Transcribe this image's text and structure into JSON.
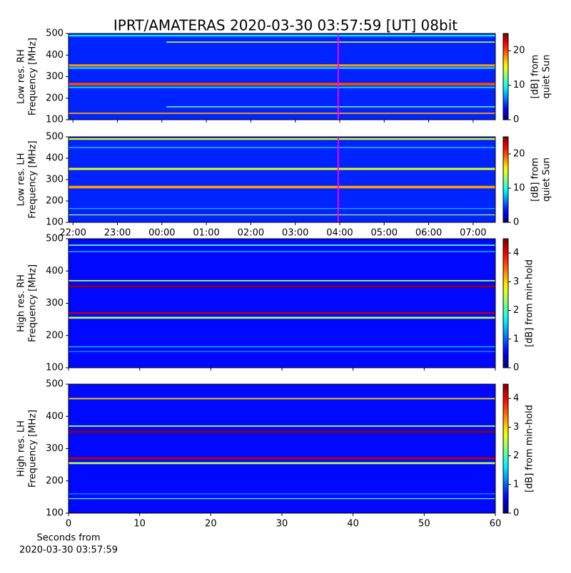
{
  "title": "IPRT/AMATERAS 2020-03-30 03:57:59 [UT]   08bit",
  "chart_data": [
    {
      "type": "heatmap",
      "ylabel": [
        "Low res. RH",
        "Frequency [MHz]"
      ],
      "xlim": [
        21.9,
        31.5
      ],
      "xticks": [
        {
          "value": 22,
          "label": "22:00"
        },
        {
          "value": 23,
          "label": "23:00"
        },
        {
          "value": 24,
          "label": "00:00"
        },
        {
          "value": 25,
          "label": "01:00"
        },
        {
          "value": 26,
          "label": "02:00"
        },
        {
          "value": 27,
          "label": "03:00"
        },
        {
          "value": 28,
          "label": "04:00"
        },
        {
          "value": 29,
          "label": "05:00"
        },
        {
          "value": 30,
          "label": "06:00"
        },
        {
          "value": 31,
          "label": "07:00"
        }
      ],
      "show_xtick_labels": false,
      "ylim": [
        100,
        500
      ],
      "yticks": [
        100,
        200,
        300,
        400,
        500
      ],
      "clim": [
        0,
        25
      ],
      "cticks": [
        0,
        10,
        20
      ],
      "clabel": [
        "[dB] from",
        "quiet Sun"
      ],
      "background": 4,
      "vline": 27.966,
      "vline_color": "#ff00ff",
      "bands": [
        {
          "freq": 490,
          "width": 8,
          "db": 9
        },
        {
          "freq": 460,
          "width": 5,
          "db": 15,
          "xrange": [
            24.1,
            31.5
          ]
        },
        {
          "freq": 352,
          "width": 10,
          "db": 18
        },
        {
          "freq": 340,
          "width": 6,
          "db": 10
        },
        {
          "freq": 265,
          "width": 12,
          "db": 20
        },
        {
          "freq": 250,
          "width": 6,
          "db": 9
        },
        {
          "freq": 160,
          "width": 5,
          "db": 12,
          "xrange": [
            24.1,
            31.5
          ]
        },
        {
          "freq": 130,
          "width": 6,
          "db": 18
        }
      ]
    },
    {
      "type": "heatmap",
      "ylabel": [
        "Low res. LH",
        "Frequency [MHz]"
      ],
      "xlim": [
        21.9,
        31.5
      ],
      "xticks": [
        {
          "value": 22,
          "label": "22:00"
        },
        {
          "value": 23,
          "label": "23:00"
        },
        {
          "value": 24,
          "label": "00:00"
        },
        {
          "value": 25,
          "label": "01:00"
        },
        {
          "value": 26,
          "label": "02:00"
        },
        {
          "value": 27,
          "label": "03:00"
        },
        {
          "value": 28,
          "label": "04:00"
        },
        {
          "value": 29,
          "label": "05:00"
        },
        {
          "value": 30,
          "label": "06:00"
        },
        {
          "value": 31,
          "label": "07:00"
        }
      ],
      "show_xtick_labels": true,
      "ylim": [
        100,
        500
      ],
      "yticks": [
        100,
        200,
        300,
        400,
        500
      ],
      "clim": [
        0,
        25
      ],
      "cticks": [
        0,
        10,
        20
      ],
      "clabel": [
        "[dB] from",
        "quiet Sun"
      ],
      "background": 4,
      "vline": 27.966,
      "vline_color": "#ff00ff",
      "bands": [
        {
          "freq": 490,
          "width": 8,
          "db": 15
        },
        {
          "freq": 450,
          "width": 5,
          "db": 8
        },
        {
          "freq": 350,
          "width": 10,
          "db": 15
        },
        {
          "freq": 265,
          "width": 12,
          "db": 18
        },
        {
          "freq": 165,
          "width": 4,
          "db": 8
        },
        {
          "freq": 135,
          "width": 4,
          "db": 14
        }
      ]
    },
    {
      "type": "heatmap",
      "ylabel": [
        "High res. RH",
        "Frequency [MHz]"
      ],
      "xlim": [
        0,
        60
      ],
      "xticks": [
        0,
        10,
        20,
        30,
        40,
        50,
        60
      ],
      "show_xtick_labels": false,
      "ylim": [
        100,
        500
      ],
      "yticks": [
        100,
        200,
        300,
        400,
        500
      ],
      "clim": [
        0,
        4.5
      ],
      "cticks": [
        0,
        1,
        2,
        3,
        4
      ],
      "clabel": [
        "[dB] from min-hold"
      ],
      "background": 0.6,
      "bands": [
        {
          "freq": 480,
          "width": 4,
          "db": 2
        },
        {
          "freq": 460,
          "width": 3,
          "db": 1.5
        },
        {
          "freq": 370,
          "width": 4,
          "db": 2.5
        },
        {
          "freq": 352,
          "width": 6,
          "db": 4.4
        },
        {
          "freq": 270,
          "width": 5,
          "db": 4.2
        },
        {
          "freq": 255,
          "width": 6,
          "db": 2.5
        },
        {
          "freq": 165,
          "width": 3,
          "db": 1.5
        },
        {
          "freq": 150,
          "width": 3,
          "db": 1.2
        }
      ]
    },
    {
      "type": "heatmap",
      "ylabel": [
        "High res. LH",
        "Frequency [MHz]"
      ],
      "xlim": [
        0,
        60
      ],
      "xticks": [
        0,
        10,
        20,
        30,
        40,
        50,
        60
      ],
      "show_xtick_labels": true,
      "xlabel": [
        "Seconds from",
        "2020-03-30 03:57:59"
      ],
      "ylim": [
        100,
        500
      ],
      "yticks": [
        100,
        200,
        300,
        400,
        500
      ],
      "clim": [
        0,
        4.5
      ],
      "cticks": [
        0,
        1,
        2,
        3,
        4
      ],
      "clabel": [
        "[dB] from min-hold"
      ],
      "background": 0.6,
      "bands": [
        {
          "freq": 455,
          "width": 4,
          "db": 3
        },
        {
          "freq": 370,
          "width": 4,
          "db": 2.5
        },
        {
          "freq": 352,
          "width": 6,
          "db": 4.4
        },
        {
          "freq": 270,
          "width": 6,
          "db": 4.2
        },
        {
          "freq": 255,
          "width": 6,
          "db": 2.5
        },
        {
          "freq": 160,
          "width": 3,
          "db": 1.2
        },
        {
          "freq": 145,
          "width": 3,
          "db": 2
        }
      ]
    }
  ]
}
